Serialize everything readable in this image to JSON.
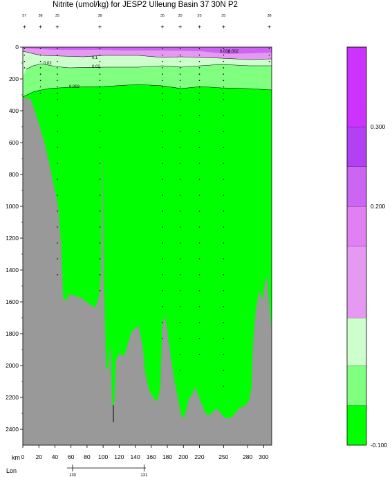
{
  "chart_data": {
    "type": "contour-section",
    "title": "Nitrite (umol/kg) for JESP2 Ulleung Basin 37 30N P2",
    "x_axis": {
      "label": "km",
      "range": [
        0,
        310
      ],
      "ticks": [
        0,
        20,
        40,
        60,
        80,
        100,
        120,
        140,
        160,
        180,
        200,
        220,
        250,
        280,
        300
      ]
    },
    "y_axis": {
      "label": "",
      "range": [
        0,
        2500
      ],
      "inverted": true,
      "ticks": [
        0,
        200,
        400,
        600,
        800,
        1000,
        1200,
        1400,
        1600,
        1800,
        2000,
        2200,
        2400
      ]
    },
    "lon_axis": {
      "label": "Lon",
      "ticks": [
        {
          "km": 62,
          "label": "130"
        },
        {
          "km": 151,
          "label": "131"
        }
      ]
    },
    "stations": [
      {
        "km": 2,
        "label": "57"
      },
      {
        "km": 22,
        "label": "38"
      },
      {
        "km": 43,
        "label": "35"
      },
      {
        "km": 96,
        "label": "38"
      },
      {
        "km": 174,
        "label": "35"
      },
      {
        "km": 196,
        "label": "35"
      },
      {
        "km": 220,
        "label": "35"
      },
      {
        "km": 250,
        "label": "35"
      },
      {
        "km": 307,
        "label": "38"
      }
    ],
    "contour_labels": [
      "0.002",
      "0.02",
      "0.1",
      "0.002",
      "0.02",
      "0.002"
    ],
    "colorbar": {
      "levels": [
        -0.1,
        -0.05,
        0.0,
        0.05,
        0.1,
        0.15,
        0.2,
        0.25,
        0.3,
        0.35,
        0.4
      ],
      "colors": [
        "#00ff00",
        "#80ff80",
        "#ccffcc",
        "#e699f2",
        "#e080f2",
        "#cc66f2",
        "#b340f2",
        "#cc33ff"
      ],
      "tick_labels": [
        {
          "value": -0.1,
          "label": "-0.100"
        },
        {
          "value": 0.2,
          "label": "0.200"
        },
        {
          "value": 0.3,
          "label": "0.300"
        }
      ]
    },
    "grid": false,
    "legend": "colorbar-right"
  }
}
